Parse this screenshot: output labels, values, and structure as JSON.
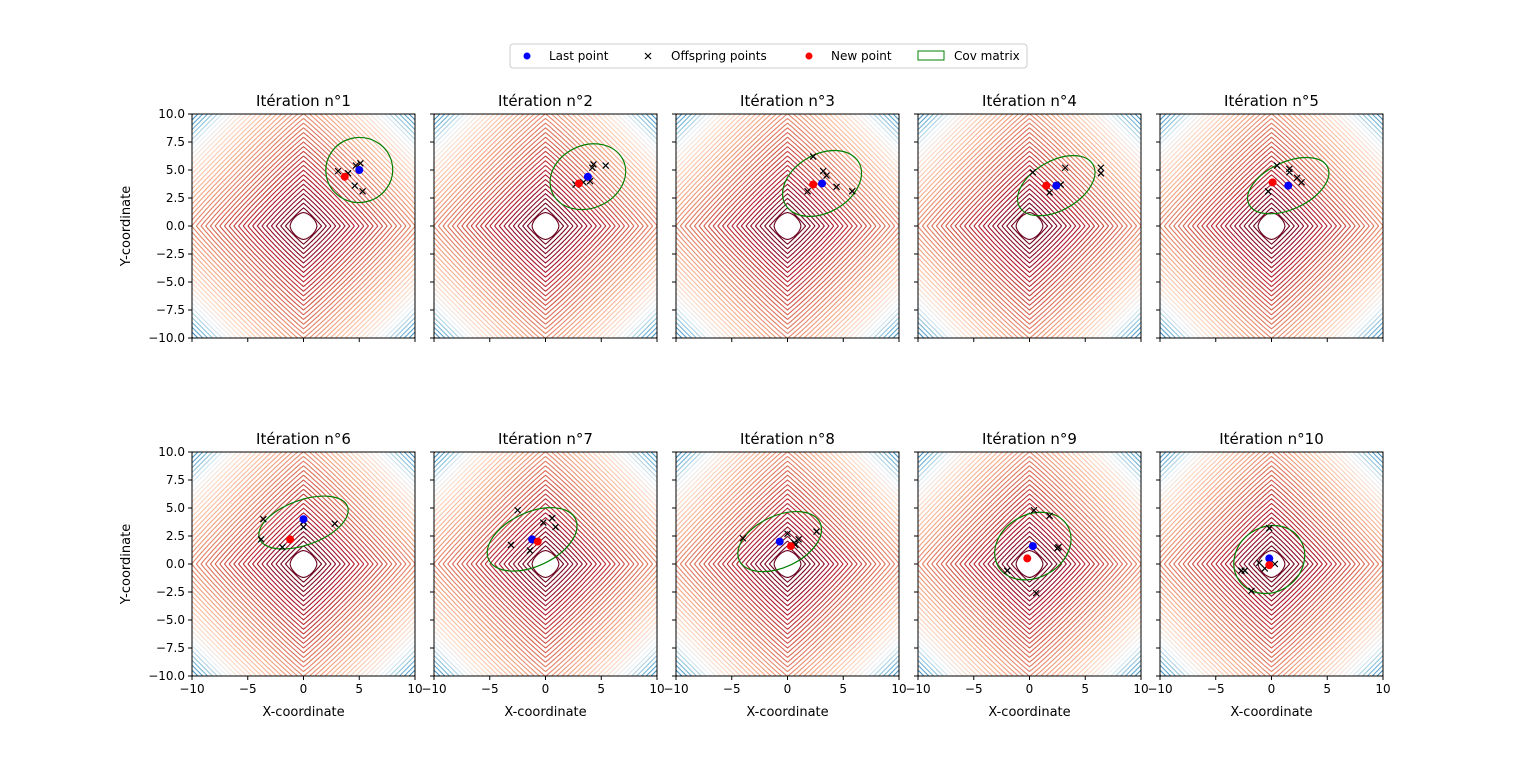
{
  "figure": {
    "legend": {
      "placement": "top-center",
      "items": [
        {
          "label": "Last point",
          "marker": "dot",
          "color": "#0000ff"
        },
        {
          "label": "Offspring points",
          "marker": "x",
          "color": "#000000"
        },
        {
          "label": "New point",
          "marker": "dot",
          "color": "#ff0000"
        },
        {
          "label": "Cov matrix",
          "marker": "patch",
          "color": "#008000"
        }
      ]
    },
    "xlabel": "X-coordinate",
    "ylabel": "Y-coordinate",
    "xticks": [
      -10,
      -5,
      0,
      5,
      10
    ],
    "yticks": [
      "10.0",
      "7.5",
      "5.0",
      "2.5",
      "0.0",
      "-2.5",
      "-5.0",
      "-7.5",
      "-10.0"
    ],
    "colors": {
      "last": "#0000ff",
      "new": "#ff0000",
      "offspring": "#000000",
      "cov": "#008000"
    }
  },
  "chart_data": [
    {
      "type": "scatter",
      "title": "Itération n°1",
      "xlim": [
        -10,
        10
      ],
      "ylim": [
        -10,
        10
      ],
      "last": [
        5.0,
        5.0
      ],
      "new": [
        3.7,
        4.4
      ],
      "offspring": [
        [
          3.1,
          4.9
        ],
        [
          4.0,
          4.7
        ],
        [
          4.7,
          5.4
        ],
        [
          5.1,
          5.6
        ],
        [
          4.6,
          3.6
        ],
        [
          5.3,
          3.1
        ]
      ],
      "cov": {
        "cx": 5.0,
        "cy": 5.0,
        "rx": 3.0,
        "ry": 2.9,
        "angle": 10
      }
    },
    {
      "type": "scatter",
      "title": "Itération n°2",
      "xlim": [
        -10,
        10
      ],
      "ylim": [
        -10,
        10
      ],
      "last": [
        3.8,
        4.4
      ],
      "new": [
        3.0,
        3.8
      ],
      "offspring": [
        [
          2.7,
          3.7
        ],
        [
          4.0,
          4.0
        ],
        [
          4.2,
          5.2
        ],
        [
          4.3,
          5.5
        ],
        [
          5.4,
          5.4
        ],
        [
          3.4,
          3.9
        ]
      ],
      "cov": {
        "cx": 3.8,
        "cy": 4.4,
        "rx": 3.5,
        "ry": 2.8,
        "angle": 25
      }
    },
    {
      "type": "scatter",
      "title": "Itération n°3",
      "xlim": [
        -10,
        10
      ],
      "ylim": [
        -10,
        10
      ],
      "last": [
        3.1,
        3.8
      ],
      "new": [
        2.3,
        3.7
      ],
      "offspring": [
        [
          1.8,
          3.1
        ],
        [
          2.3,
          6.2
        ],
        [
          3.2,
          4.9
        ],
        [
          3.5,
          4.5
        ],
        [
          4.4,
          3.5
        ],
        [
          5.8,
          3.1
        ]
      ],
      "cov": {
        "cx": 3.1,
        "cy": 3.8,
        "rx": 3.8,
        "ry": 2.6,
        "angle": 30
      }
    },
    {
      "type": "scatter",
      "title": "Itération n°4",
      "xlim": [
        -10,
        10
      ],
      "ylim": [
        -10,
        10
      ],
      "last": [
        2.4,
        3.6
      ],
      "new": [
        1.5,
        3.6
      ],
      "offspring": [
        [
          0.3,
          4.8
        ],
        [
          1.8,
          3.0
        ],
        [
          2.8,
          3.7
        ],
        [
          3.2,
          5.2
        ],
        [
          6.4,
          5.2
        ],
        [
          6.4,
          4.7
        ]
      ],
      "cov": {
        "cx": 2.4,
        "cy": 3.6,
        "rx": 3.8,
        "ry": 2.2,
        "angle": 30
      }
    },
    {
      "type": "scatter",
      "title": "Itération n°5",
      "xlim": [
        -10,
        10
      ],
      "ylim": [
        -10,
        10
      ],
      "last": [
        1.5,
        3.6
      ],
      "new": [
        0.1,
        3.9
      ],
      "offspring": [
        [
          -0.3,
          3.1
        ],
        [
          0.5,
          5.4
        ],
        [
          1.6,
          5.1
        ],
        [
          1.6,
          4.8
        ],
        [
          2.3,
          4.3
        ],
        [
          2.7,
          3.9
        ]
      ],
      "cov": {
        "cx": 1.5,
        "cy": 3.6,
        "rx": 3.9,
        "ry": 2.1,
        "angle": 25
      }
    },
    {
      "type": "scatter",
      "title": "Itération n°6",
      "xlim": [
        -10,
        10
      ],
      "ylim": [
        -10,
        10
      ],
      "last": [
        0.0,
        4.0
      ],
      "new": [
        -1.2,
        2.2
      ],
      "offspring": [
        [
          -3.6,
          4.0
        ],
        [
          -3.8,
          2.2
        ],
        [
          -1.9,
          1.5
        ],
        [
          0.0,
          3.3
        ],
        [
          0.0,
          3.8
        ],
        [
          2.8,
          3.6
        ]
      ],
      "cov": {
        "cx": 0.0,
        "cy": 3.7,
        "rx": 4.2,
        "ry": 2.0,
        "angle": 20
      }
    },
    {
      "type": "scatter",
      "title": "Itération n°7",
      "xlim": [
        -10,
        10
      ],
      "ylim": [
        -10,
        10
      ],
      "last": [
        -1.2,
        2.2
      ],
      "new": [
        -0.7,
        2.0
      ],
      "offspring": [
        [
          -2.5,
          4.8
        ],
        [
          -3.1,
          1.7
        ],
        [
          -1.4,
          1.2
        ],
        [
          -0.2,
          3.7
        ],
        [
          0.6,
          4.1
        ],
        [
          0.9,
          3.3
        ]
      ],
      "cov": {
        "cx": -1.2,
        "cy": 2.2,
        "rx": 4.3,
        "ry": 2.4,
        "angle": 25
      }
    },
    {
      "type": "scatter",
      "title": "Itération n°8",
      "xlim": [
        -10,
        10
      ],
      "ylim": [
        -10,
        10
      ],
      "last": [
        -0.7,
        2.0
      ],
      "new": [
        0.3,
        1.6
      ],
      "offspring": [
        [
          -4.0,
          2.3
        ],
        [
          0.0,
          2.7
        ],
        [
          1.0,
          2.2
        ],
        [
          0.7,
          1.7
        ],
        [
          2.6,
          2.9
        ],
        [
          0.6,
          1.9
        ]
      ],
      "cov": {
        "cx": -0.7,
        "cy": 2.0,
        "rx": 4.0,
        "ry": 2.3,
        "angle": 25
      }
    },
    {
      "type": "scatter",
      "title": "Itération n°9",
      "xlim": [
        -10,
        10
      ],
      "ylim": [
        -10,
        10
      ],
      "last": [
        0.3,
        1.6
      ],
      "new": [
        -0.2,
        0.5
      ],
      "offspring": [
        [
          -2.0,
          -0.6
        ],
        [
          0.4,
          4.8
        ],
        [
          1.8,
          4.3
        ],
        [
          2.5,
          1.4
        ],
        [
          2.6,
          1.5
        ],
        [
          0.6,
          -2.6
        ]
      ],
      "cov": {
        "cx": 0.3,
        "cy": 1.6,
        "rx": 3.6,
        "ry": 2.8,
        "angle": 30
      }
    },
    {
      "type": "scatter",
      "title": "Itération n°10",
      "xlim": [
        -10,
        10
      ],
      "ylim": [
        -10,
        10
      ],
      "last": [
        -0.2,
        0.5
      ],
      "new": [
        -0.2,
        -0.1
      ],
      "offspring": [
        [
          -2.4,
          -0.6
        ],
        [
          -2.7,
          -0.6
        ],
        [
          -1.8,
          -2.4
        ],
        [
          -0.2,
          3.2
        ],
        [
          -1.1,
          0.1
        ],
        [
          0.3,
          0.0
        ],
        [
          -0.6,
          -0.4
        ]
      ],
      "cov": {
        "cx": -0.2,
        "cy": 0.4,
        "rx": 3.3,
        "ry": 2.9,
        "angle": 35
      }
    }
  ]
}
